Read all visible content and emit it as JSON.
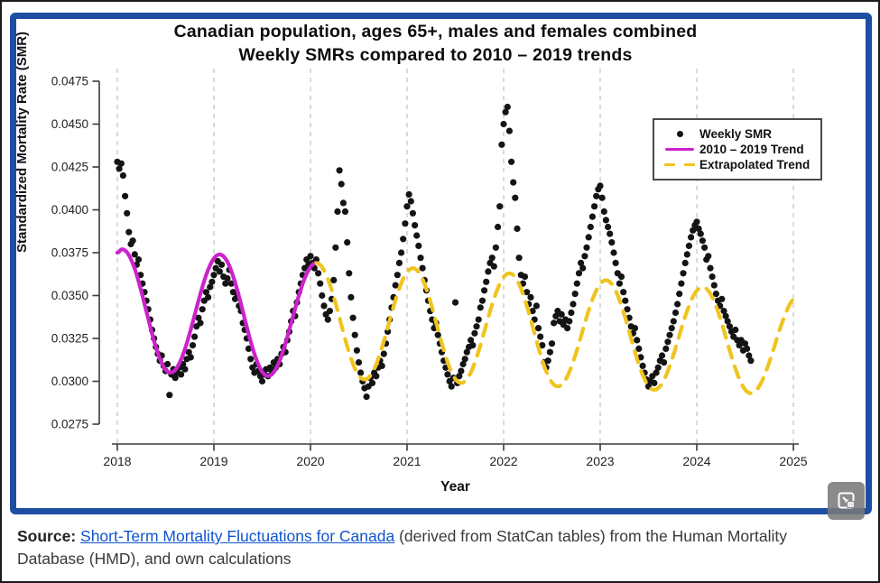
{
  "frame": {
    "border_color": "#1d4ea2"
  },
  "overlay": {
    "button_icon": "screen-share-resize-icon"
  },
  "source": {
    "label": "Source:",
    "link_text": "Short-Term Mortality Fluctuations for Canada",
    "suffix_after_link": " (derived from StatCan tables) from the Human Mortality Database (HMD), and own calculations"
  },
  "chart_data": {
    "type": "scatter",
    "title_line1": "Canadian population, ages 65+, males and females combined",
    "title_line2": "Weekly SMRs compared to 2010 – 2019 trends",
    "xlabel": "Year",
    "ylabel": "Standardized Mortality Rate (SMR)",
    "x_ticks": [
      2018,
      2019,
      2020,
      2021,
      2022,
      2023,
      2024,
      2025
    ],
    "y_ticks": [
      "0.0275",
      "0.0300",
      "0.0325",
      "0.0350",
      "0.0375",
      "0.0400",
      "0.0425",
      "0.0450",
      "0.0475"
    ],
    "xlim": [
      2017.9,
      2025.1
    ],
    "ylim": [
      0.0275,
      0.0475
    ],
    "grid": "dashed-vertical-per-year",
    "legend_position": "top-right",
    "series": [
      {
        "name": "Weekly SMR",
        "type": "scatter",
        "marker": "dot",
        "color": "#141414",
        "t_start": 2018.0,
        "t_step": 0.02,
        "values": [
          0.0428,
          0.0424,
          0.0427,
          0.042,
          0.0408,
          0.0398,
          0.0387,
          0.038,
          0.0382,
          0.0374,
          0.0368,
          0.0371,
          0.0362,
          0.0357,
          0.0352,
          0.0347,
          0.0342,
          0.0336,
          0.033,
          0.0325,
          0.032,
          0.0316,
          0.0312,
          0.0315,
          0.0309,
          0.0306,
          0.031,
          0.0292,
          0.0304,
          0.0307,
          0.0302,
          0.0305,
          0.0308,
          0.0304,
          0.031,
          0.0307,
          0.0313,
          0.0317,
          0.0314,
          0.0321,
          0.0326,
          0.0332,
          0.0337,
          0.0334,
          0.0342,
          0.0347,
          0.0352,
          0.0349,
          0.0355,
          0.0358,
          0.0362,
          0.0366,
          0.037,
          0.0364,
          0.0368,
          0.0361,
          0.0357,
          0.036,
          0.0365,
          0.0357,
          0.0352,
          0.0348,
          0.0351,
          0.0344,
          0.0341,
          0.0334,
          0.033,
          0.0325,
          0.0319,
          0.0313,
          0.0308,
          0.0305,
          0.031,
          0.0306,
          0.0303,
          0.03,
          0.0304,
          0.0307,
          0.0303,
          0.0308,
          0.0306,
          0.0311,
          0.0308,
          0.0313,
          0.031,
          0.0316,
          0.032,
          0.0317,
          0.0324,
          0.0329,
          0.0335,
          0.0341,
          0.0338,
          0.0346,
          0.0352,
          0.0357,
          0.0362,
          0.0366,
          0.0371,
          0.0368,
          0.0373,
          0.0369,
          0.0366,
          0.0371,
          0.0363,
          0.0357,
          0.035,
          0.0344,
          0.0339,
          0.0336,
          0.0341,
          0.0348,
          0.0359,
          0.0378,
          0.0399,
          0.0423,
          0.0415,
          0.0404,
          0.0399,
          0.0381,
          0.0363,
          0.0349,
          0.0337,
          0.0327,
          0.0318,
          0.0311,
          0.0305,
          0.03,
          0.0296,
          0.0291,
          0.0297,
          0.0302,
          0.0299,
          0.0305,
          0.0303,
          0.0308,
          0.0312,
          0.0309,
          0.0316,
          0.0322,
          0.0329,
          0.0336,
          0.0343,
          0.0349,
          0.0356,
          0.0362,
          0.0369,
          0.0375,
          0.0383,
          0.0392,
          0.0402,
          0.0409,
          0.0405,
          0.0398,
          0.0391,
          0.0385,
          0.0379,
          0.0372,
          0.0366,
          0.0359,
          0.0353,
          0.0347,
          0.0341,
          0.0336,
          0.0331,
          0.0334,
          0.0327,
          0.0322,
          0.0317,
          0.0312,
          0.0308,
          0.0304,
          0.03,
          0.0297,
          0.0302,
          0.0346,
          0.0299,
          0.0303,
          0.0306,
          0.031,
          0.0313,
          0.0317,
          0.032,
          0.0324,
          0.0321,
          0.0328,
          0.0332,
          0.0336,
          0.0343,
          0.0347,
          0.0353,
          0.0358,
          0.0364,
          0.0369,
          0.0372,
          0.0367,
          0.0378,
          0.039,
          0.0402,
          0.0438,
          0.045,
          0.0457,
          0.046,
          0.0446,
          0.0428,
          0.0416,
          0.0407,
          0.0389,
          0.0372,
          0.0362,
          0.0357,
          0.0361,
          0.0352,
          0.0345,
          0.0349,
          0.0341,
          0.0336,
          0.0344,
          0.0331,
          0.0326,
          0.0321,
          0.0311,
          0.0308,
          0.0312,
          0.0317,
          0.0322,
          0.0334,
          0.0338,
          0.0341,
          0.0335,
          0.0339,
          0.0333,
          0.0336,
          0.0331,
          0.0335,
          0.034,
          0.0345,
          0.0351,
          0.0357,
          0.0363,
          0.0369,
          0.0366,
          0.0373,
          0.0378,
          0.0384,
          0.039,
          0.0396,
          0.0402,
          0.0408,
          0.0412,
          0.0414,
          0.0407,
          0.0399,
          0.0394,
          0.039,
          0.0386,
          0.0381,
          0.0375,
          0.0369,
          0.0363,
          0.0357,
          0.0361,
          0.0352,
          0.0347,
          0.0342,
          0.0337,
          0.0332,
          0.0328,
          0.0331,
          0.0324,
          0.0319,
          0.0314,
          0.0309,
          0.0305,
          0.0301,
          0.0297,
          0.03,
          0.0303,
          0.0299,
          0.0305,
          0.0308,
          0.0312,
          0.0315,
          0.0311,
          0.0319,
          0.0323,
          0.0327,
          0.0331,
          0.0335,
          0.034,
          0.0345,
          0.0351,
          0.0357,
          0.0363,
          0.0369,
          0.0374,
          0.0379,
          0.0384,
          0.0388,
          0.0391,
          0.0393,
          0.0389,
          0.0386,
          0.0382,
          0.0378,
          0.0371,
          0.0373,
          0.0366,
          0.0361,
          0.0356,
          0.0351,
          0.0347,
          0.0344,
          0.0348,
          0.0341,
          0.0338,
          0.0335,
          0.0332,
          0.0329,
          0.0326,
          0.033,
          0.0324,
          0.0321,
          0.0324,
          0.0318,
          0.0322,
          0.0319,
          0.0315,
          0.0312
        ]
      },
      {
        "name": "2010 – 2019 Trend",
        "type": "line",
        "style": "solid",
        "color": "#cc22cc",
        "anchors": [
          [
            2018.0,
            0.0375
          ],
          [
            2018.05,
            0.0377
          ],
          [
            2018.55,
            0.0305
          ],
          [
            2019.06,
            0.0374
          ],
          [
            2019.56,
            0.0303
          ],
          [
            2020.06,
            0.0369
          ]
        ]
      },
      {
        "name": "Extrapolated Trend",
        "type": "line",
        "style": "dashed",
        "color": "#f0c41e",
        "anchors": [
          [
            2020.06,
            0.0369
          ],
          [
            2020.56,
            0.0301
          ],
          [
            2021.06,
            0.0366
          ],
          [
            2021.56,
            0.0299
          ],
          [
            2022.06,
            0.0363
          ],
          [
            2022.56,
            0.0297
          ],
          [
            2023.06,
            0.0359
          ],
          [
            2023.56,
            0.0295
          ],
          [
            2024.06,
            0.0355
          ],
          [
            2024.56,
            0.0293
          ],
          [
            2025.06,
            0.035
          ]
        ]
      }
    ]
  }
}
